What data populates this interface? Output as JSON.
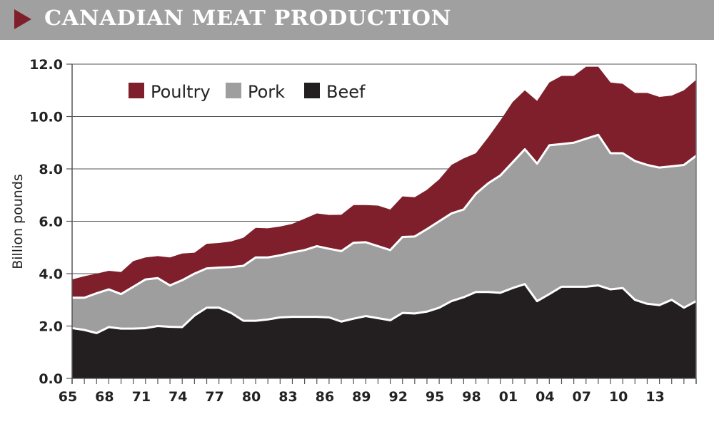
{
  "header": {
    "title": "CANADIAN MEAT PRODUCTION",
    "marker_color": "#7e1f2b",
    "background": "#a0a0a0"
  },
  "chart_data": {
    "type": "area",
    "stacked": true,
    "title": "CANADIAN MEAT PRODUCTION",
    "xlabel": "",
    "ylabel": "Billion pounds",
    "ylim": [
      0,
      12
    ],
    "xlim": [
      1965,
      2016
    ],
    "yticks": [
      "0.0",
      "2.0",
      "4.0",
      "6.0",
      "8.0",
      "10.0",
      "12.0"
    ],
    "xtick_labels": [
      "65",
      "68",
      "71",
      "74",
      "77",
      "80",
      "83",
      "86",
      "89",
      "92",
      "95",
      "98",
      "01",
      "04",
      "07",
      "10",
      "13"
    ],
    "xtick_years": [
      1965,
      1968,
      1971,
      1974,
      1977,
      1980,
      1983,
      1986,
      1989,
      1992,
      1995,
      1998,
      2001,
      2004,
      2007,
      2010,
      2013
    ],
    "grid": "horizontal",
    "legend_position": "top-left",
    "x": [
      1965,
      1966,
      1967,
      1968,
      1969,
      1970,
      1971,
      1972,
      1973,
      1974,
      1975,
      1976,
      1977,
      1978,
      1979,
      1980,
      1981,
      1982,
      1983,
      1984,
      1985,
      1986,
      1987,
      1988,
      1989,
      1990,
      1991,
      1992,
      1993,
      1994,
      1995,
      1996,
      1997,
      1998,
      1999,
      2000,
      2001,
      2002,
      2003,
      2004,
      2005,
      2006,
      2007,
      2008,
      2009,
      2010,
      2011,
      2012,
      2013,
      2014,
      2015,
      2016
    ],
    "series": [
      {
        "name": "Beef",
        "color": "#231f20",
        "values": [
          1.92,
          1.85,
          1.73,
          1.96,
          1.9,
          1.9,
          1.92,
          2.0,
          1.97,
          1.96,
          2.4,
          2.7,
          2.7,
          2.5,
          2.2,
          2.2,
          2.25,
          2.33,
          2.35,
          2.35,
          2.35,
          2.33,
          2.17,
          2.28,
          2.38,
          2.3,
          2.22,
          2.5,
          2.48,
          2.55,
          2.7,
          2.95,
          3.1,
          3.3,
          3.3,
          3.27,
          3.45,
          3.6,
          2.95,
          3.22,
          3.5,
          3.5,
          3.5,
          3.55,
          3.4,
          3.45,
          3.0,
          2.85,
          2.8,
          3.0,
          2.7,
          2.95
        ]
      },
      {
        "name": "Pork",
        "color": "#9e9e9e",
        "values": [
          1.16,
          1.23,
          1.52,
          1.44,
          1.32,
          1.6,
          1.86,
          1.83,
          1.58,
          1.79,
          1.6,
          1.5,
          1.53,
          1.75,
          2.1,
          2.42,
          2.37,
          2.37,
          2.46,
          2.55,
          2.7,
          2.62,
          2.69,
          2.9,
          2.82,
          2.75,
          2.68,
          2.9,
          2.94,
          3.15,
          3.3,
          3.35,
          3.35,
          3.75,
          4.15,
          4.48,
          4.8,
          5.15,
          5.25,
          5.68,
          5.45,
          5.5,
          5.65,
          5.75,
          5.2,
          5.15,
          5.3,
          5.3,
          5.25,
          5.1,
          5.45,
          5.55
        ]
      },
      {
        "name": "Poultry",
        "color": "#7e1f2b",
        "values": [
          0.7,
          0.82,
          0.75,
          0.71,
          0.84,
          0.98,
          0.84,
          0.84,
          1.07,
          1.02,
          0.8,
          0.94,
          0.94,
          0.98,
          1.07,
          1.13,
          1.11,
          1.1,
          1.09,
          1.2,
          1.25,
          1.29,
          1.39,
          1.44,
          1.42,
          1.55,
          1.55,
          1.55,
          1.5,
          1.5,
          1.6,
          1.85,
          1.95,
          1.55,
          1.75,
          2.1,
          2.3,
          2.25,
          2.4,
          2.4,
          2.6,
          2.55,
          2.75,
          2.6,
          2.7,
          2.65,
          2.6,
          2.75,
          2.7,
          2.7,
          2.85,
          2.9
        ]
      }
    ],
    "legend": [
      "Poultry",
      "Pork",
      "Beef"
    ]
  }
}
